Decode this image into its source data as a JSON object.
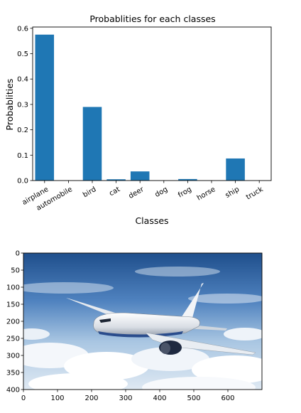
{
  "chart_data": [
    {
      "type": "bar",
      "title": "Probablities for each classes",
      "xlabel": "Classes",
      "ylabel": "Probablities",
      "categories": [
        "airplane",
        "automobile",
        "bird",
        "cat",
        "deer",
        "dog",
        "frog",
        "horse",
        "ship",
        "truck"
      ],
      "values": [
        0.575,
        0.0,
        0.29,
        0.005,
        0.036,
        0.0,
        0.006,
        0.0,
        0.087,
        0.0
      ],
      "ylim": [
        0,
        0.605
      ],
      "yticks": [
        "0.0",
        "0.1",
        "0.2",
        "0.3",
        "0.4",
        "0.5",
        "0.6"
      ],
      "bar_color": "#1f77b4",
      "grid": false
    },
    {
      "type": "image",
      "content": "photo of a white passenger airplane flying above clouds in a blue sky",
      "xlim": [
        0,
        700
      ],
      "ylim": [
        400,
        0
      ],
      "xticks": [
        "0",
        "100",
        "200",
        "300",
        "400",
        "500",
        "600"
      ],
      "yticks": [
        "0",
        "50",
        "100",
        "150",
        "200",
        "250",
        "300",
        "350",
        "400"
      ]
    }
  ]
}
